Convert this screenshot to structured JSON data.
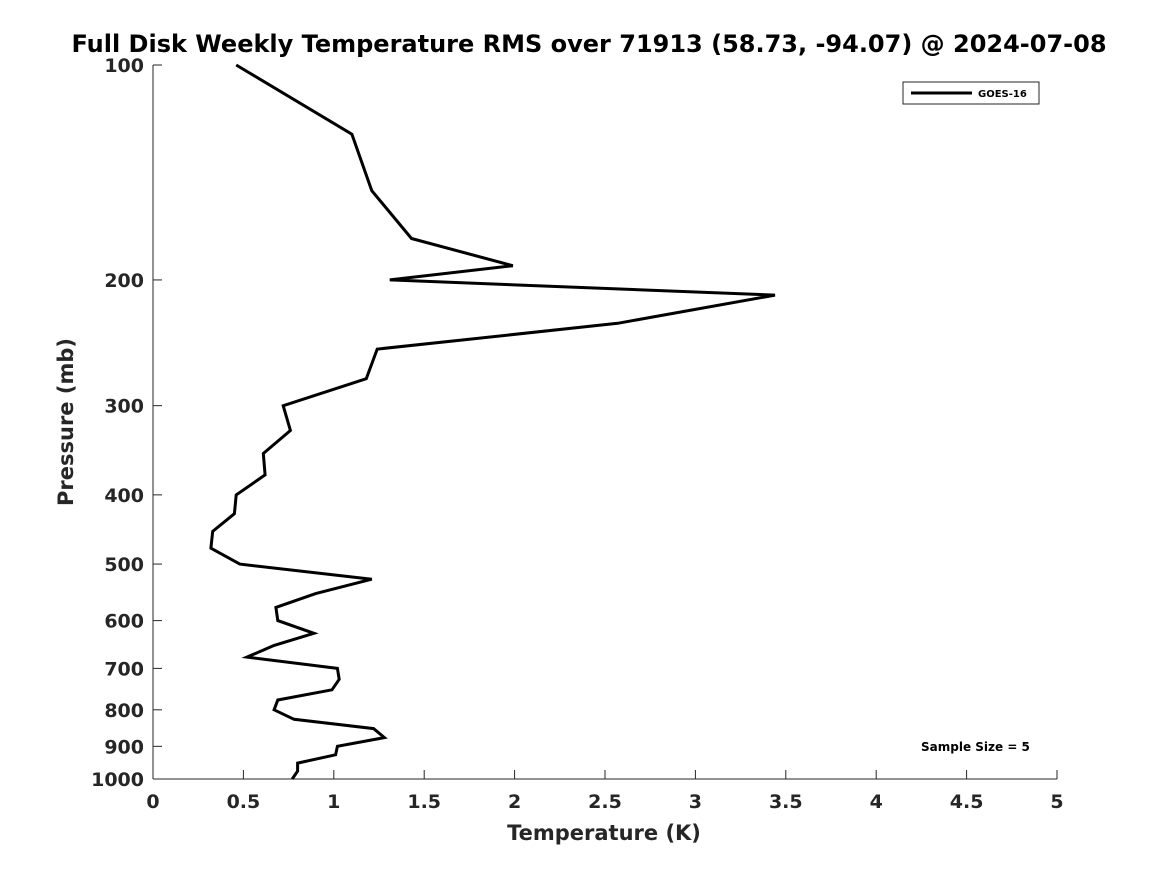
{
  "chart_data": {
    "type": "line",
    "title": "Full Disk Weekly Temperature RMS over 71913 (58.73, -94.07) @ 2024-07-08",
    "xlabel": "Temperature (K)",
    "ylabel": "Pressure (mb)",
    "xlim": [
      0,
      5
    ],
    "ylim": [
      100,
      1000
    ],
    "y_scale": "log",
    "y_reversed": true,
    "x_ticks": [
      "0",
      "0.5",
      "1",
      "1.5",
      "2",
      "2.5",
      "3",
      "3.5",
      "4",
      "4.5",
      "5"
    ],
    "x_tick_values": [
      0,
      0.5,
      1,
      1.5,
      2,
      2.5,
      3,
      3.5,
      4,
      4.5,
      5
    ],
    "y_ticks": [
      "100",
      "200",
      "300",
      "400",
      "500",
      "600",
      "700",
      "800",
      "900",
      "1000"
    ],
    "y_tick_values": [
      100,
      200,
      300,
      400,
      500,
      600,
      700,
      800,
      900,
      1000
    ],
    "grid": false,
    "legend_position": "top-right",
    "series": [
      {
        "name": "GOES-16",
        "color": "#000000",
        "points": [
          [
            0.46,
            100
          ],
          [
            1.1,
            125
          ],
          [
            1.21,
            150
          ],
          [
            1.43,
            175
          ],
          [
            1.99,
            191
          ],
          [
            1.31,
            200
          ],
          [
            3.44,
            210
          ],
          [
            2.57,
            230
          ],
          [
            1.24,
            250
          ],
          [
            1.18,
            275
          ],
          [
            0.72,
            300
          ],
          [
            0.76,
            325
          ],
          [
            0.61,
            350
          ],
          [
            0.62,
            375
          ],
          [
            0.46,
            400
          ],
          [
            0.45,
            425
          ],
          [
            0.33,
            450
          ],
          [
            0.32,
            475
          ],
          [
            0.48,
            500
          ],
          [
            1.21,
            525
          ],
          [
            0.9,
            550
          ],
          [
            0.68,
            575
          ],
          [
            0.69,
            600
          ],
          [
            0.89,
            625
          ],
          [
            0.67,
            650
          ],
          [
            0.52,
            675
          ],
          [
            1.02,
            700
          ],
          [
            1.03,
            725
          ],
          [
            0.99,
            750
          ],
          [
            0.69,
            775
          ],
          [
            0.67,
            800
          ],
          [
            0.78,
            825
          ],
          [
            1.22,
            850
          ],
          [
            1.28,
            875
          ],
          [
            1.02,
            900
          ],
          [
            1.01,
            925
          ],
          [
            0.8,
            950
          ],
          [
            0.8,
            975
          ],
          [
            0.77,
            1000
          ]
        ]
      }
    ],
    "annotation": "Sample Size = 5"
  }
}
